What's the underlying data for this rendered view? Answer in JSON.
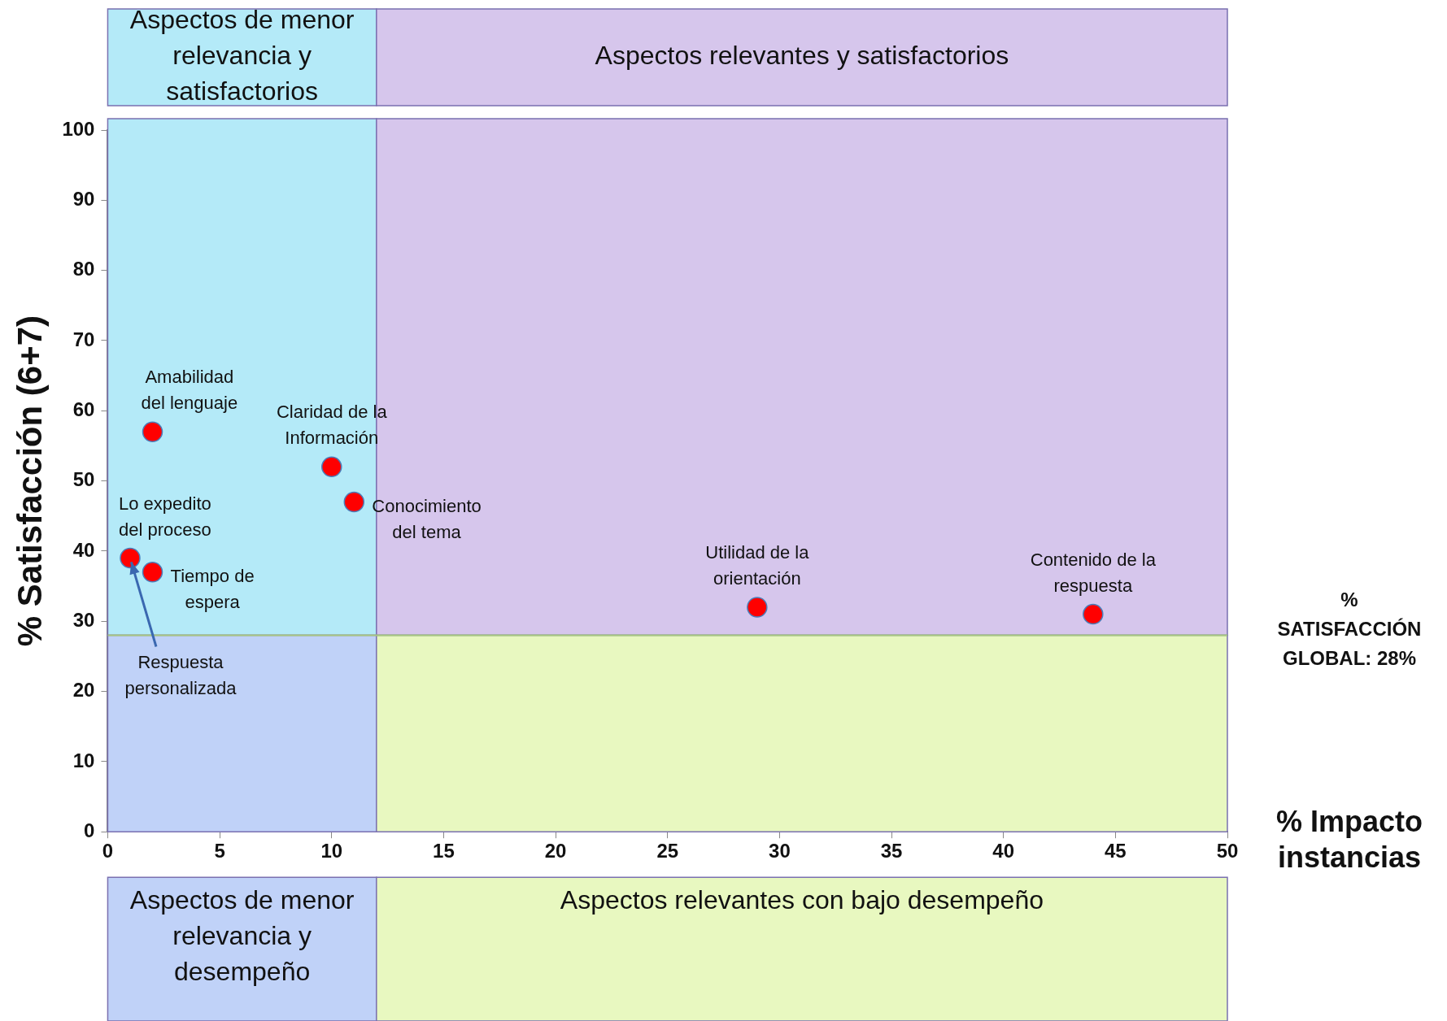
{
  "chart_data": {
    "type": "scatter",
    "ylabel": "% Satisfacción (6+7)",
    "xlabel": "% Impacto instancias",
    "xlim": [
      0,
      50
    ],
    "xticks": [
      0,
      5,
      10,
      15,
      20,
      25,
      30,
      35,
      40,
      45,
      50
    ],
    "ylim": [
      0,
      100
    ],
    "yticks": [
      0,
      10,
      20,
      30,
      40,
      50,
      60,
      70,
      80,
      90,
      100
    ],
    "grid": false,
    "legend": false,
    "marker": "circle",
    "series": [
      {
        "color": "#ff0000",
        "x": [
          2,
          10,
          11,
          1,
          2,
          29,
          44
        ],
        "values": [
          57,
          52,
          47,
          39,
          37,
          32,
          31
        ]
      }
    ],
    "ref_lines": [
      {
        "axis": "y",
        "value": 28,
        "label": "% SATISFACCIÓN GLOBAL: 28%",
        "color": "#a8c880"
      }
    ],
    "bands": [
      {
        "axis": "x",
        "from": 0,
        "to": 12,
        "label": "Aspectos de menor relevancia y satisfactorios",
        "color": "#b4eaf8"
      },
      {
        "axis": "x",
        "from": 12,
        "to": 50,
        "label": "Aspectos relevantes y satisfactorios",
        "color": "#d6c6ec"
      },
      {
        "axis": "x",
        "from": 0,
        "to": 12,
        "label": "Aspectos de menor relevancia y desempeño",
        "color": "#c0d2f8"
      },
      {
        "axis": "x",
        "from": 12,
        "to": 50,
        "label": "Aspectos relevantes con bajo desempeño",
        "color": "#e8f8c0"
      }
    ],
    "annotations": [
      {
        "text": "Amabilidad\ndel lenguaje",
        "x": 2,
        "y": 57
      },
      {
        "text": "Claridad de la\nInformación",
        "x": 10,
        "y": 52
      },
      {
        "text": "Conocimiento\ndel tema",
        "x": 11,
        "y": 47
      },
      {
        "text": "Lo expedito\ndel proceso",
        "x": 1,
        "y": 39
      },
      {
        "text": "Tiempo de\nespera",
        "x": 2,
        "y": 37
      },
      {
        "text": "Utilidad de la\norientación",
        "x": 29,
        "y": 32
      },
      {
        "text": "Contenido de la\nrespuesta",
        "x": 44,
        "y": 31
      },
      {
        "text": "Respuesta\npersonalizada",
        "x": 1,
        "y": 39
      }
    ]
  }
}
